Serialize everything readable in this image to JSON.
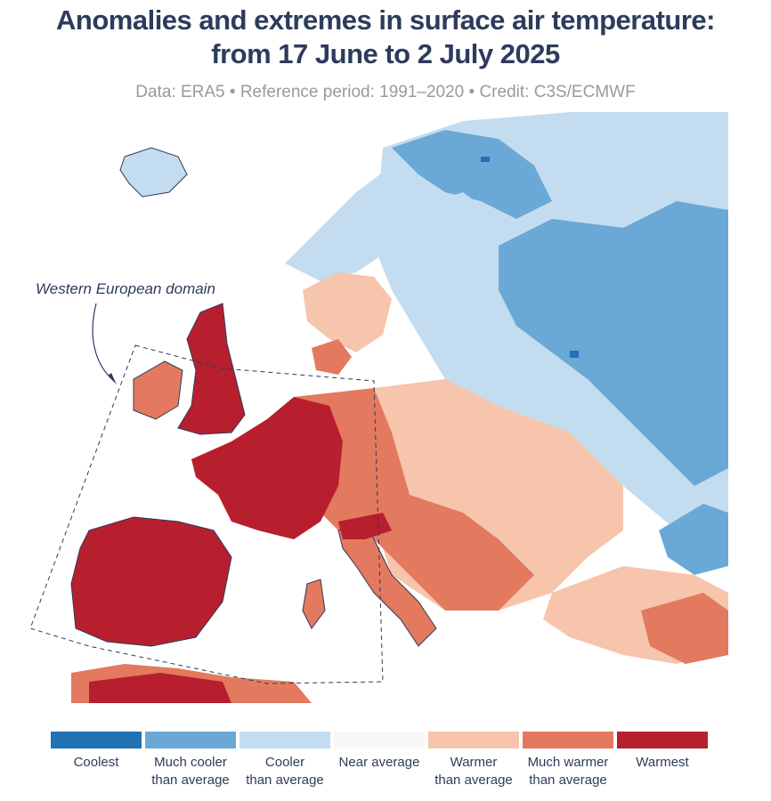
{
  "title": {
    "line1": "Anomalies and extremes in surface air temperature:",
    "line2": "from 17 June to 2 July 2025"
  },
  "subtitle": "Data: ERA5 • Reference period: 1991–2020 • Credit: C3S/ECMWF",
  "map": {
    "domain_label": "Western European domain",
    "colors": {
      "coolest": "#2171b5",
      "much_cooler": "#6aa8d6",
      "cooler": "#c3dcef",
      "near_average": "#f7f7f7",
      "warmer": "#f7c4ac",
      "much_warmer": "#e3795f",
      "warmest": "#b71f2e",
      "coast": "#2d3b5c"
    }
  },
  "legend": [
    {
      "line1": "Coolest",
      "line2": "",
      "color": "#2171b5"
    },
    {
      "line1": "Much cooler",
      "line2": "than average",
      "color": "#6aa8d6"
    },
    {
      "line1": "Cooler",
      "line2": "than average",
      "color": "#c3dcef"
    },
    {
      "line1": "Near average",
      "line2": "",
      "color": "#f7f7f7"
    },
    {
      "line1": "Warmer",
      "line2": "than average",
      "color": "#f7c4ac"
    },
    {
      "line1": "Much warmer",
      "line2": "than average",
      "color": "#e3795f"
    },
    {
      "line1": "Warmest",
      "line2": "",
      "color": "#b71f2e"
    }
  ]
}
